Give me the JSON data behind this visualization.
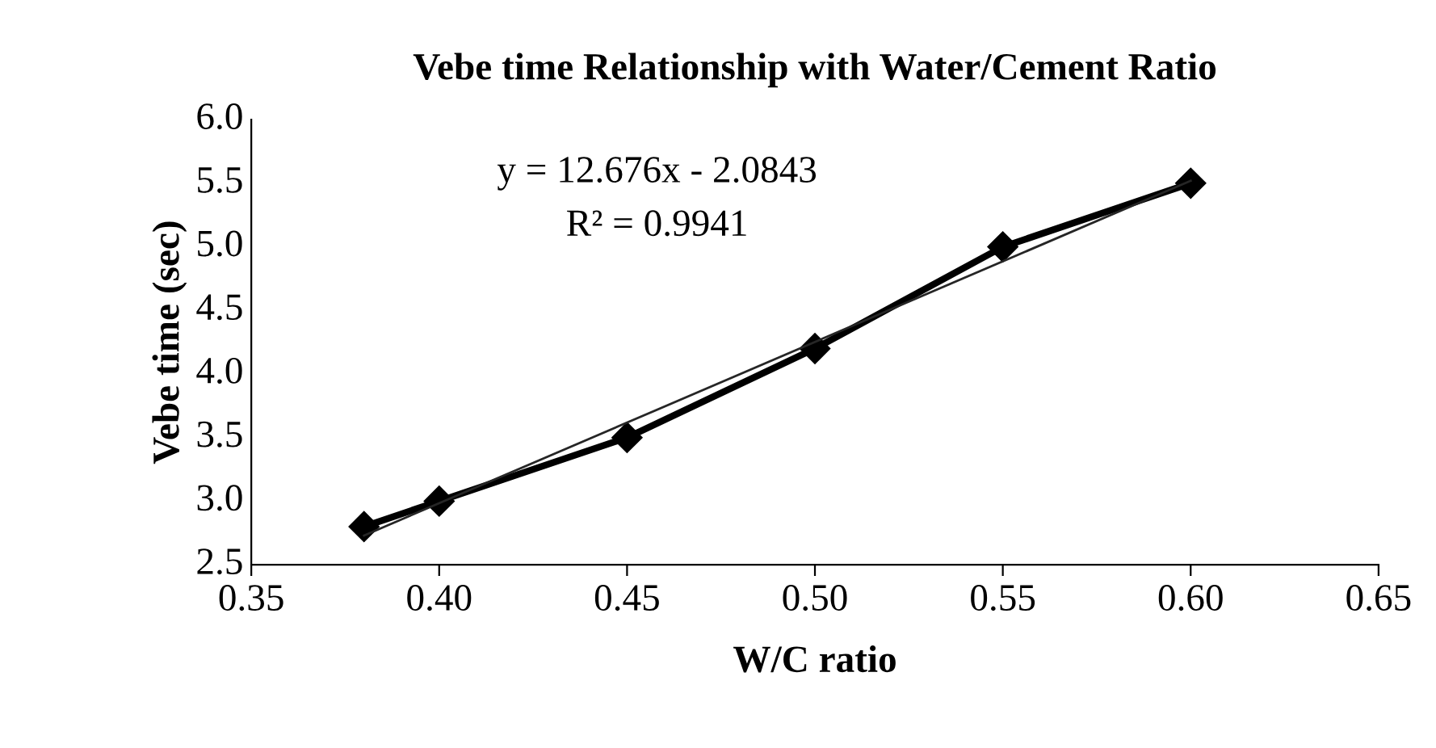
{
  "chart_data": {
    "type": "line",
    "title": "Vebe time Relationship with Water/Cement Ratio",
    "xlabel": "W/C ratio",
    "ylabel": "Vebe time (sec)",
    "x": [
      0.38,
      0.4,
      0.45,
      0.5,
      0.55,
      0.6
    ],
    "series": [
      {
        "color": "#000000",
        "marker": "diamond",
        "values": [
          2.8,
          3.0,
          3.5,
          4.2,
          5.0,
          5.5
        ]
      },
      {
        "type": "line",
        "color": "#262626",
        "marker": "none",
        "x": [
          0.38,
          0.6
        ],
        "values": [
          2.73,
          5.52
        ]
      }
    ],
    "annotations": [
      "y = 12.676x - 2.0843",
      "R² = 0.9941"
    ],
    "xlim": [
      0.35,
      0.65
    ],
    "xticks": [
      {
        "value": 0.35,
        "label": "0.35"
      },
      {
        "value": 0.4,
        "label": "0.40"
      },
      {
        "value": 0.45,
        "label": "0.45"
      },
      {
        "value": 0.5,
        "label": "0.50"
      },
      {
        "value": 0.55,
        "label": "0.55"
      },
      {
        "value": 0.6,
        "label": "0.60"
      },
      {
        "value": 0.65,
        "label": "0.65"
      }
    ],
    "ylim": [
      2.5,
      6.0
    ],
    "yticks": [
      {
        "value": 2.5,
        "label": "2.5"
      },
      {
        "value": 3.0,
        "label": "3.0"
      },
      {
        "value": 3.5,
        "label": "3.5"
      },
      {
        "value": 4.0,
        "label": "4.0"
      },
      {
        "value": 4.5,
        "label": "4.5"
      },
      {
        "value": 5.0,
        "label": "5.0"
      },
      {
        "value": 5.5,
        "label": "5.5"
      },
      {
        "value": 6.0,
        "label": "6.0"
      }
    ],
    "grid": false,
    "legend": false
  }
}
